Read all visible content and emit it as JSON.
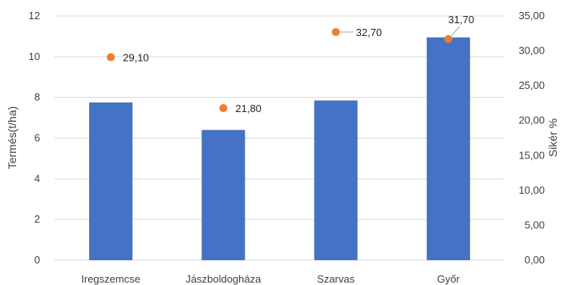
{
  "chart_data": {
    "type": "bar",
    "categories": [
      "Iregszemcse",
      "Jászboldogháza",
      "Szarvas",
      "Győr"
    ],
    "series": [
      {
        "name": "",
        "kind": "bar",
        "axis": "left",
        "values": [
          7.75,
          6.4,
          7.85,
          10.95
        ]
      },
      {
        "name": "",
        "kind": "scatter",
        "axis": "right",
        "values": [
          29.1,
          21.8,
          32.7,
          31.7
        ],
        "labels": [
          "29,10",
          "21,80",
          "32,70",
          "31,70"
        ]
      }
    ],
    "y_left": {
      "label": "Termés(t/ha)",
      "lim": [
        0,
        12
      ],
      "ticks": [
        "0",
        "2",
        "4",
        "6",
        "8",
        "10",
        "12"
      ]
    },
    "y_right": {
      "label": "Sikér %",
      "lim": [
        0,
        35
      ],
      "ticks": [
        "0,00",
        "5,00",
        "10,00",
        "15,00",
        "20,00",
        "25,00",
        "30,00",
        "35,00"
      ]
    },
    "grid": true,
    "legend": false,
    "colors": {
      "bar": "#4472C4",
      "marker": "#ED7D31",
      "grid": "#D9D9D9",
      "leader": "#A6A6A6"
    }
  }
}
